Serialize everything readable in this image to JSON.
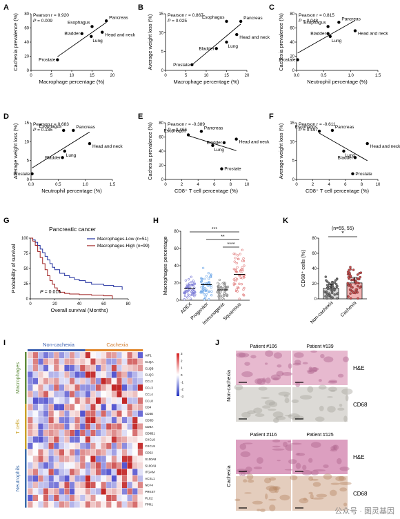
{
  "panels": {
    "A": {
      "letter": "A",
      "stat1": "Pearson r = 0.920",
      "stat2_p": "P",
      "stat2_v": " = 0.009",
      "xlabel": "Macrophage percentage (%)",
      "ylabel": "Cachexia prevalence (%)",
      "xticks": [
        "0",
        "5",
        "10",
        "15",
        "20"
      ],
      "yticks": [
        "0",
        "20",
        "40",
        "60",
        "80"
      ],
      "labels": [
        "Pancreas",
        "Esophagus",
        "Bladder",
        "Lung",
        "Head and neck",
        "Prostate"
      ]
    },
    "B": {
      "letter": "B",
      "stat1": "Pearson r = 0.867",
      "stat2_p": "P",
      "stat2_v": " = 0.025",
      "xlabel": "Macrophage percentage (%)",
      "ylabel": "Average weight loss (%)",
      "xticks": [
        "0",
        "5",
        "10",
        "15",
        "20"
      ],
      "yticks": [
        "0",
        "5",
        "10",
        "15"
      ],
      "labels": [
        "Pancreas",
        "Esophagus",
        "Head and neck",
        "Lung",
        "Bladder",
        "Prostate"
      ]
    },
    "C": {
      "letter": "C",
      "stat1": "Pearson r = 0.815",
      "stat2_p": "P",
      "stat2_v": " = 0.048",
      "xlabel": "Neutrophil percentage (%)",
      "ylabel": "Cachexia prevalence (%)",
      "xticks": [
        "0.0",
        "0.5",
        "1.0",
        "1.5"
      ],
      "yticks": [
        "0",
        "20",
        "40",
        "60",
        "80"
      ],
      "labels": [
        "Pancreas",
        "Esophagus",
        "Bladder",
        "Lung",
        "Head and neck",
        "Prostate"
      ]
    },
    "D": {
      "letter": "D",
      "stat1": "Pearson r = 0.683",
      "stat2_p": "P",
      "stat2_v": " = 0.135",
      "xlabel": "Neutrophil percentage (%)",
      "ylabel": "Average weight loss (%)",
      "xticks": [
        "0.0",
        "0.5",
        "1.0",
        "1.5"
      ],
      "yticks": [
        "0",
        "5",
        "10",
        "15"
      ],
      "labels": [
        "Pancreas",
        "Esophagus",
        "Head and neck",
        "Lung",
        "Bladder",
        "Prostate"
      ]
    },
    "E": {
      "letter": "E",
      "stat1": "Pearson r = -0.389",
      "stat2_p": "P",
      "stat2_v": " = 0.466",
      "xlabel": "CD8⁺ T cell percentage (%)",
      "ylabel": "Cachexia prevalence (%)",
      "xticks": [
        "0",
        "2",
        "4",
        "6",
        "8",
        "10"
      ],
      "yticks": [
        "0",
        "20",
        "40",
        "60",
        "80"
      ],
      "labels": [
        "Pancreas",
        "Head and neck",
        "Esophagus",
        "Bladder",
        "Lung",
        "Prostate"
      ]
    },
    "F": {
      "letter": "F",
      "stat1": "Pearson r = -0.611",
      "stat2_p": "P",
      "stat2_v": " = 0.197",
      "xlabel": "CD8⁺ T cell percentage (%)",
      "ylabel": "Average weight loss (%)",
      "xticks": [
        "0",
        "2",
        "4",
        "6",
        "8",
        "10"
      ],
      "yticks": [
        "0",
        "5",
        "10",
        "15"
      ],
      "labels": [
        "Pancreas",
        "Esophagus",
        "Head and neck",
        "Lung",
        "Bladder",
        "Prostate"
      ]
    },
    "G": {
      "letter": "G",
      "title": "Pancreatic cancer",
      "legend_low": "Macrophages-Low (n=51)",
      "legend_high": "Macrophages-High (n=99)",
      "p_label": "P",
      "p_value": " = 0.016",
      "xlabel": "Overall survival (Months)",
      "ylabel": "Probability of survival",
      "xticks": [
        "0",
        "20",
        "40",
        "60",
        "80"
      ],
      "yticks": [
        "0",
        "25",
        "50",
        "75",
        "100"
      ],
      "color_low": "#1f2d9e",
      "color_high": "#9e1f1f"
    },
    "H": {
      "letter": "H",
      "ylabel": "Macrophages percentage",
      "groups": [
        "ADEX",
        "Progenitor",
        "Immunogenic",
        "Squamous"
      ],
      "yticks": [
        "0",
        "20",
        "40",
        "60",
        "80"
      ],
      "sig": [
        "***",
        "**",
        "****"
      ],
      "colors": [
        "#7a7ad6",
        "#6fa8e8",
        "#8a8a8a",
        "#e07a7a"
      ]
    },
    "K": {
      "letter": "K",
      "n_label": "(n=55, 55)",
      "sig": "*",
      "ylabel": "CD68⁺ cells (%)",
      "groups": [
        "Non-cachexia",
        "Cachexia"
      ],
      "yticks": [
        "0",
        "20",
        "40",
        "60",
        "80"
      ],
      "colors": [
        "#9a9a9a",
        "#e07a7a"
      ]
    },
    "I": {
      "letter": "I",
      "group_non": "Non-cachexia",
      "group_cac": "Cachexia",
      "row_groups": [
        "Macrophages",
        "T cells",
        "Neutrophils"
      ],
      "genes": [
        "AIF1",
        "C1QA",
        "C1QB",
        "C1QC",
        "CCL2",
        "CCL3",
        "CCL4",
        "CCL8",
        "CD4",
        "CD3E",
        "CD3D",
        "CD8A",
        "CD8B1",
        "CXCL9",
        "CXCL9b",
        "CD52",
        "S100A8",
        "S100A9",
        "ITGAM",
        "ACSL1",
        "NCF4",
        "PRKST",
        "PLC2",
        "FPR1"
      ],
      "colorbar_ticks": [
        "3",
        "2",
        "1",
        "0",
        "-1",
        "-2",
        "-3"
      ]
    },
    "J": {
      "letter": "J",
      "non_cachexia": "Non-cachexia",
      "cachexia": "Cachexia",
      "patients_top": [
        "Patient #106",
        "Patient #139"
      ],
      "patients_bottom": [
        "Patient #116",
        "Patient #125"
      ],
      "stain_he": "H&E",
      "stain_cd68": "CD68"
    }
  },
  "watermark": "公众号 · 图灵基因",
  "chart_data": [
    {
      "type": "scatter",
      "panel": "A",
      "xlabel": "Macrophage percentage (%)",
      "ylabel": "Cachexia prevalence (%)",
      "xlim": [
        0,
        20
      ],
      "ylim": [
        0,
        80
      ],
      "points": [
        {
          "name": "Pancreas",
          "x": 18.5,
          "y": 70
        },
        {
          "name": "Esophagus",
          "x": 15,
          "y": 62
        },
        {
          "name": "Bladder",
          "x": 12.5,
          "y": 52
        },
        {
          "name": "Lung",
          "x": 14.8,
          "y": 48
        },
        {
          "name": "Head and neck",
          "x": 17.5,
          "y": 54
        },
        {
          "name": "Prostate",
          "x": 6.5,
          "y": 15
        }
      ]
    },
    {
      "type": "scatter",
      "panel": "B",
      "xlabel": "Macrophage percentage (%)",
      "ylabel": "Average weight loss (%)",
      "xlim": [
        0,
        20
      ],
      "ylim": [
        0,
        15
      ],
      "points": [
        {
          "name": "Pancreas",
          "x": 18.5,
          "y": 13
        },
        {
          "name": "Esophagus",
          "x": 15,
          "y": 13
        },
        {
          "name": "Head and neck",
          "x": 17.5,
          "y": 9.5
        },
        {
          "name": "Lung",
          "x": 15,
          "y": 7.5
        },
        {
          "name": "Bladder",
          "x": 12.5,
          "y": 5.8
        },
        {
          "name": "Prostate",
          "x": 6.5,
          "y": 1.5
        }
      ]
    },
    {
      "type": "scatter",
      "panel": "C",
      "xlabel": "Neutrophil percentage (%)",
      "ylabel": "Cachexia prevalence (%)",
      "xlim": [
        0,
        1.5
      ],
      "ylim": [
        0,
        80
      ],
      "points": [
        {
          "name": "Pancreas",
          "x": 0.78,
          "y": 68
        },
        {
          "name": "Esophagus",
          "x": 0.58,
          "y": 62
        },
        {
          "name": "Bladder",
          "x": 0.58,
          "y": 52
        },
        {
          "name": "Lung",
          "x": 0.62,
          "y": 48
        },
        {
          "name": "Head and neck",
          "x": 1.08,
          "y": 56
        },
        {
          "name": "Prostate",
          "x": 0.02,
          "y": 15
        }
      ]
    },
    {
      "type": "scatter",
      "panel": "D",
      "xlabel": "Neutrophil percentage (%)",
      "ylabel": "Average weight loss (%)",
      "xlim": [
        0,
        1.5
      ],
      "ylim": [
        0,
        15
      ],
      "points": [
        {
          "name": "Pancreas",
          "x": 0.78,
          "y": 13
        },
        {
          "name": "Esophagus",
          "x": 0.6,
          "y": 13
        },
        {
          "name": "Head and neck",
          "x": 1.08,
          "y": 9.5
        },
        {
          "name": "Lung",
          "x": 0.62,
          "y": 7.5
        },
        {
          "name": "Bladder",
          "x": 0.58,
          "y": 5.8
        },
        {
          "name": "Prostate",
          "x": 0.02,
          "y": 1.5
        }
      ]
    },
    {
      "type": "scatter",
      "panel": "E",
      "xlabel": "CD8⁺ T cell percentage (%)",
      "ylabel": "Cachexia prevalence (%)",
      "xlim": [
        0,
        10
      ],
      "ylim": [
        0,
        80
      ],
      "points": [
        {
          "name": "Pancreas",
          "x": 4.4,
          "y": 68
        },
        {
          "name": "Head and neck",
          "x": 8.7,
          "y": 57
        },
        {
          "name": "Esophagus",
          "x": 2.8,
          "y": 63
        },
        {
          "name": "Bladder",
          "x": 7.2,
          "y": 52
        },
        {
          "name": "Lung",
          "x": 5.8,
          "y": 48
        },
        {
          "name": "Prostate",
          "x": 6.9,
          "y": 15
        }
      ]
    },
    {
      "type": "scatter",
      "panel": "F",
      "xlabel": "CD8⁺ T cell percentage (%)",
      "ylabel": "Average weight loss (%)",
      "xlim": [
        0,
        10
      ],
      "ylim": [
        0,
        15
      ],
      "points": [
        {
          "name": "Pancreas",
          "x": 4.4,
          "y": 13
        },
        {
          "name": "Esophagus",
          "x": 2.8,
          "y": 12.8
        },
        {
          "name": "Head and neck",
          "x": 8.7,
          "y": 9.5
        },
        {
          "name": "Lung",
          "x": 5.8,
          "y": 7.5
        },
        {
          "name": "Bladder",
          "x": 7.2,
          "y": 5.8
        },
        {
          "name": "Prostate",
          "x": 6.9,
          "y": 1.5
        }
      ]
    },
    {
      "type": "line",
      "panel": "G",
      "title": "Pancreatic cancer",
      "xlabel": "Overall survival (Months)",
      "ylabel": "Probability of survival",
      "xlim": [
        0,
        80
      ],
      "ylim": [
        0,
        100
      ],
      "series": [
        {
          "name": "Macrophages-Low (n=51)",
          "x": [
            0,
            2,
            4,
            6,
            8,
            10,
            12,
            14,
            16,
            18,
            20,
            24,
            28,
            32,
            36,
            40,
            45,
            50,
            60,
            68,
            75
          ],
          "y": [
            100,
            97,
            93,
            88,
            82,
            76,
            70,
            64,
            58,
            52,
            48,
            42,
            38,
            35,
            32,
            30,
            27,
            24,
            22,
            20,
            15
          ]
        },
        {
          "name": "Macrophages-High (n=99)",
          "x": [
            0,
            2,
            4,
            6,
            8,
            10,
            12,
            14,
            16,
            18,
            20,
            22,
            24,
            28,
            32,
            40,
            50,
            60,
            66,
            67
          ],
          "y": [
            100,
            95,
            88,
            78,
            68,
            58,
            48,
            38,
            30,
            24,
            18,
            14,
            11,
            9,
            8,
            7,
            6,
            5,
            5,
            0
          ]
        }
      ]
    },
    {
      "type": "scatter",
      "panel": "H",
      "ylabel": "Macrophages percentage",
      "categories": [
        "ADEX",
        "Progenitor",
        "Immunogenic",
        "Squamous"
      ],
      "ylim": [
        0,
        80
      ],
      "series": [
        {
          "name": "ADEX",
          "mean": 14
        },
        {
          "name": "Progenitor",
          "mean": 18
        },
        {
          "name": "Immunogenic",
          "mean": 12
        },
        {
          "name": "Squamous",
          "mean": 30
        }
      ]
    },
    {
      "type": "bar",
      "panel": "K",
      "ylabel": "CD68⁺ cells (%)",
      "categories": [
        "Non-cachexia",
        "Cachexia"
      ],
      "values": [
        14,
        21
      ],
      "ylim": [
        0,
        80
      ]
    }
  ]
}
